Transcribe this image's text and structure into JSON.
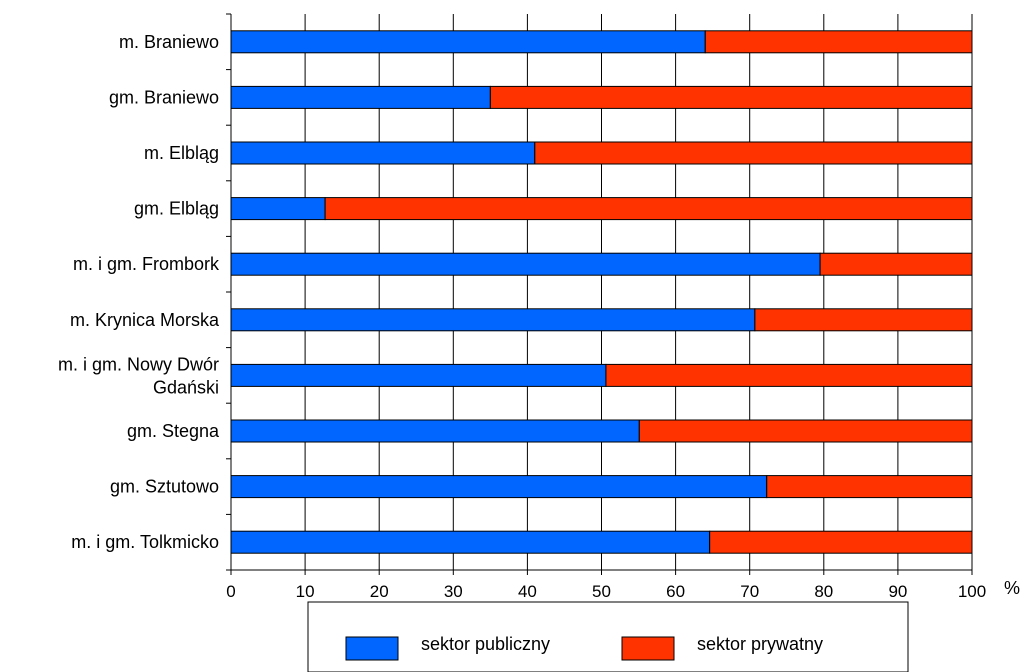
{
  "chart_data": {
    "type": "bar",
    "orientation": "horizontal",
    "stacked": true,
    "categories": [
      "m. Braniewo",
      "gm. Braniewo",
      "m. Elbląg",
      "gm. Elbląg",
      "m. i gm. Frombork",
      "m. Krynica Morska",
      "m. i gm. Nowy Dwór Gdański",
      "gm. Stegna",
      "gm. Sztutowo",
      "m. i gm. Tolkmicko"
    ],
    "series": [
      {
        "name": "sektor publiczny",
        "color": "#0066ff",
        "values": [
          64,
          35,
          41,
          12.7,
          79.5,
          70.7,
          50.6,
          55.1,
          72.3,
          64.6
        ]
      },
      {
        "name": "sektor prywatny",
        "color": "#ff3300",
        "values": [
          36,
          65,
          59,
          87.3,
          20.5,
          29.3,
          49.4,
          44.9,
          27.7,
          35.4
        ]
      }
    ],
    "xlim": [
      0,
      100
    ],
    "xticks": [
      0,
      10,
      20,
      30,
      40,
      50,
      60,
      70,
      80,
      90,
      100
    ],
    "xunit": "%",
    "grid": "vertical",
    "legend": "bottom"
  }
}
